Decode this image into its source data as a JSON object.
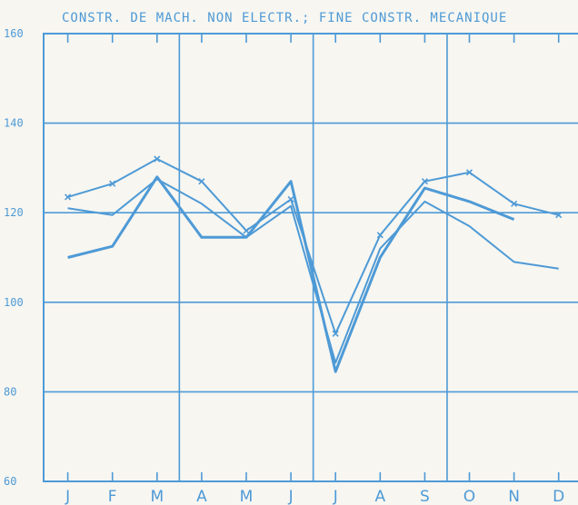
{
  "chart_data": {
    "type": "line",
    "title": "CONSTR. DE MACH. NON ELECTR.; FINE CONSTR. MECANIQUE",
    "xlabel": "",
    "ylabel": "",
    "categories": [
      "J",
      "F",
      "M",
      "A",
      "M",
      "J",
      "J",
      "A",
      "S",
      "O",
      "N",
      "D"
    ],
    "ylim": [
      60,
      160
    ],
    "yticks": [
      60,
      80,
      100,
      120,
      140,
      160
    ],
    "grid": true,
    "color": "#4e9ad6",
    "series": [
      {
        "values": [
          123.5,
          126.5,
          132,
          127,
          116,
          123,
          93,
          115,
          127,
          129,
          122,
          119.5
        ],
        "markers": true,
        "width": 2
      },
      {
        "values": [
          121,
          119.5,
          127.5,
          122,
          114.5,
          121.5,
          86.5,
          112,
          122.5,
          117,
          109,
          107.5
        ],
        "markers": false,
        "width": 2
      },
      {
        "values": [
          110,
          112.5,
          128,
          114.5,
          114.5,
          127,
          84.5,
          110,
          125.5,
          122.5,
          118.5,
          null
        ],
        "markers": false,
        "width": 3
      }
    ]
  }
}
